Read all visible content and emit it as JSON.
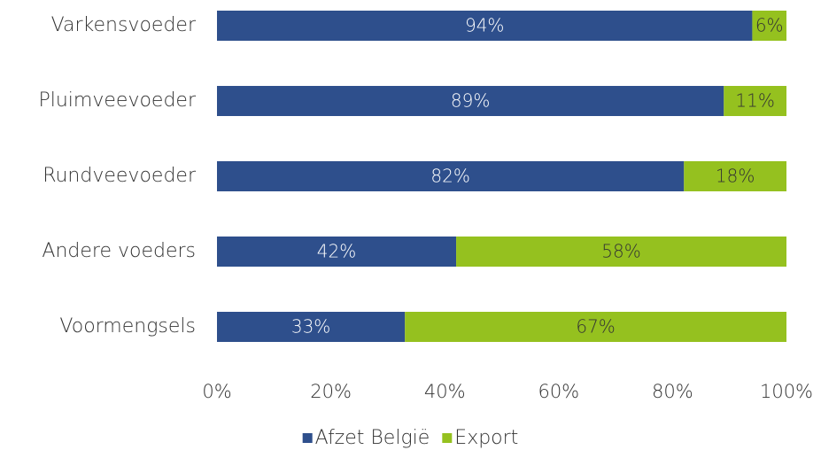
{
  "chart_data": {
    "type": "bar",
    "orientation": "horizontal",
    "stacked": true,
    "categories": [
      "Varkensvoeder",
      "Pluimveevoeder",
      "Rundveevoeder",
      "Andere voeders",
      "Voormengsels"
    ],
    "series": [
      {
        "name": "Afzet België",
        "color": "#2e4f8c",
        "values": [
          94,
          89,
          82,
          42,
          33
        ],
        "value_labels": [
          "94%",
          "89%",
          "82%",
          "42%",
          "33%"
        ]
      },
      {
        "name": "Export",
        "color": "#95c11f",
        "values": [
          6,
          11,
          18,
          58,
          67
        ],
        "value_labels": [
          "6%",
          "11%",
          "18%",
          "58%",
          "67%"
        ]
      }
    ],
    "xlim": [
      0,
      100
    ],
    "xticks": [
      {
        "value": 0,
        "label": "0%"
      },
      {
        "value": 20,
        "label": "20%"
      },
      {
        "value": 40,
        "label": "40%"
      },
      {
        "value": 60,
        "label": "60%"
      },
      {
        "value": 80,
        "label": "80%"
      },
      {
        "value": 100,
        "label": "100%"
      }
    ],
    "grid": false,
    "legend": "bottom"
  }
}
